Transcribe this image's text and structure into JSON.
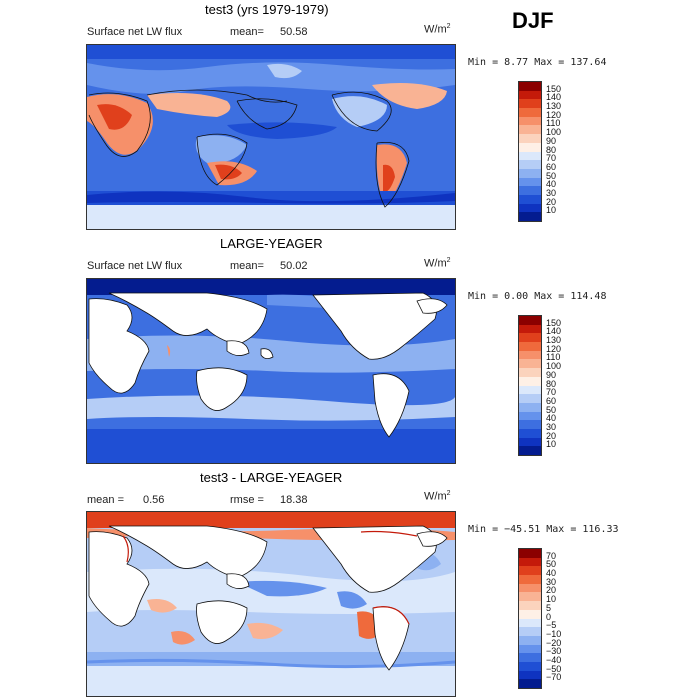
{
  "season": "DJF",
  "panels": [
    {
      "title": "test3 (yrs 1979-1979)",
      "left_label": "Surface net LW flux",
      "mean_label": "mean=",
      "mean_value": "50.58",
      "units": "W/m",
      "units_exp": "2",
      "minmax": "Min =   8.77 Max = 137.64",
      "cbar_labels": [
        "150",
        "140",
        "130",
        "120",
        "110",
        "100",
        "90",
        "80",
        "70",
        "60",
        "50",
        "40",
        "30",
        "20",
        "10"
      ],
      "cbar_colors": [
        "#8b0000",
        "#c41a0a",
        "#e0401c",
        "#ef6a3c",
        "#f6906a",
        "#f9b394",
        "#fbd3bd",
        "#fef0e6",
        "#dbe8fb",
        "#b5cdf6",
        "#8db1f1",
        "#6592ec",
        "#3d6fe0",
        "#1f4fd4",
        "#0f33c0",
        "#041c8f"
      ]
    },
    {
      "title": "LARGE-YEAGER",
      "left_label": "Surface net LW flux",
      "mean_label": "mean=",
      "mean_value": "50.02",
      "units": "W/m",
      "units_exp": "2",
      "minmax": "Min =   0.00 Max = 114.48",
      "cbar_labels": [
        "150",
        "140",
        "130",
        "120",
        "110",
        "100",
        "90",
        "80",
        "70",
        "60",
        "50",
        "40",
        "30",
        "20",
        "10"
      ],
      "cbar_colors": [
        "#8b0000",
        "#c41a0a",
        "#e0401c",
        "#ef6a3c",
        "#f6906a",
        "#f9b394",
        "#fbd3bd",
        "#fef0e6",
        "#dbe8fb",
        "#b5cdf6",
        "#8db1f1",
        "#6592ec",
        "#3d6fe0",
        "#1f4fd4",
        "#0f33c0",
        "#041c8f"
      ]
    },
    {
      "title": "test3 - LARGE-YEAGER",
      "left_label": "mean =",
      "mean_label": "",
      "mean_value": "0.56",
      "rmse_label": "rmse =",
      "rmse_value": "18.38",
      "units": "W/m",
      "units_exp": "2",
      "minmax": "Min = −45.51 Max = 116.33",
      "cbar_labels": [
        "70",
        "50",
        "40",
        "30",
        "20",
        "10",
        "5",
        "0",
        "−5",
        "−10",
        "−20",
        "−30",
        "−40",
        "−50",
        "−70"
      ],
      "cbar_colors": [
        "#8b0000",
        "#c41a0a",
        "#e0401c",
        "#ef6a3c",
        "#f6906a",
        "#f9b394",
        "#fbd3bd",
        "#fef0e6",
        "#dbe8fb",
        "#b5cdf6",
        "#8db1f1",
        "#6592ec",
        "#3d6fe0",
        "#1f4fd4",
        "#0f33c0",
        "#041c8f"
      ]
    }
  ]
}
